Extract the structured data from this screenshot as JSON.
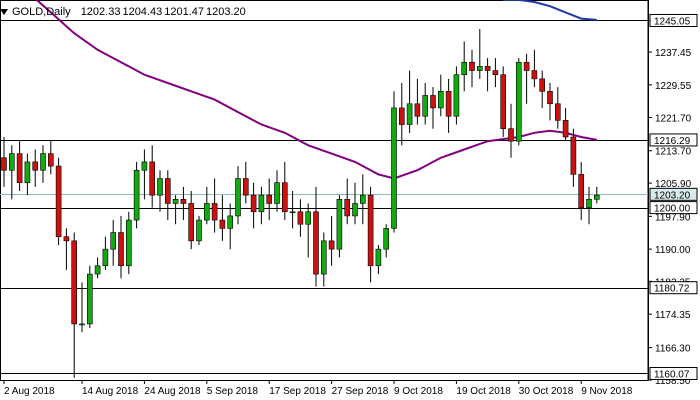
{
  "header": {
    "symbol": "GOLD,Daily",
    "open": "1202.33",
    "high": "1204.43",
    "low": "1201.47",
    "close": "1203.20"
  },
  "colors": {
    "bull": "#11aa11",
    "bear": "#cc1111",
    "ma_purple": "#800080",
    "ma_blue": "#1f3aa8",
    "line": "#000000",
    "current_price_line": "#8fb8b8",
    "axis": "#000000"
  },
  "chart_data": {
    "type": "candlestick",
    "price_axis": {
      "min": 1158.5,
      "max": 1249.5,
      "ticks": [
        "1245.05",
        "1237.45",
        "1229.55",
        "1221.70",
        "1213.70",
        "1205.90",
        "1197.90",
        "1190.00",
        "1182.25",
        "1174.35",
        "1166.30",
        "1158.50"
      ]
    },
    "price_levels": [
      {
        "label": "1245.05",
        "value": 1245.05,
        "boxed": true
      },
      {
        "label": "1216.29",
        "value": 1216.29,
        "boxed": true
      },
      {
        "label": "1203.20",
        "value": 1203.2,
        "boxed": true,
        "current": true
      },
      {
        "label": "1200.00",
        "value": 1200.0,
        "boxed": true
      },
      {
        "label": "1180.72",
        "value": 1180.72,
        "boxed": true
      },
      {
        "label": "1160.07",
        "value": 1160.07,
        "boxed": true
      }
    ],
    "x_labels": [
      "2 Aug 2018",
      "14 Aug 2018",
      "24 Aug 2018",
      "5 Sep 2018",
      "17 Sep 2018",
      "27 Sep 2018",
      "9 Oct 2018",
      "19 Oct 2018",
      "30 Oct 2018",
      "9 Nov 2018"
    ],
    "x_label_index": [
      0,
      10,
      18,
      26,
      34,
      42,
      50,
      58,
      66,
      74
    ],
    "candles": [
      [
        1212,
        1217,
        1205,
        1209
      ],
      [
        1209,
        1215,
        1202,
        1213
      ],
      [
        1213,
        1216,
        1204,
        1206
      ],
      [
        1206,
        1213,
        1203,
        1211
      ],
      [
        1211,
        1214,
        1205,
        1209
      ],
      [
        1209,
        1215,
        1206,
        1213
      ],
      [
        1213,
        1216,
        1208,
        1210
      ],
      [
        1210,
        1212,
        1191,
        1193
      ],
      [
        1193,
        1195,
        1185,
        1192
      ],
      [
        1192,
        1194,
        1159,
        1172
      ],
      [
        1172,
        1182,
        1170,
        1172
      ],
      [
        1172,
        1186,
        1171,
        1184
      ],
      [
        1184,
        1188,
        1183,
        1186
      ],
      [
        1186,
        1193,
        1185,
        1190
      ],
      [
        1190,
        1197,
        1186,
        1194
      ],
      [
        1194,
        1198,
        1183,
        1186
      ],
      [
        1186,
        1199,
        1184,
        1197
      ],
      [
        1197,
        1211,
        1195,
        1209
      ],
      [
        1209,
        1214,
        1202,
        1211
      ],
      [
        1211,
        1215,
        1200,
        1203
      ],
      [
        1203,
        1209,
        1199,
        1207
      ],
      [
        1207,
        1209,
        1197,
        1201
      ],
      [
        1201,
        1203,
        1196,
        1202
      ],
      [
        1202,
        1205,
        1197,
        1201
      ],
      [
        1201,
        1204,
        1190,
        1192
      ],
      [
        1192,
        1198,
        1191,
        1197
      ],
      [
        1197,
        1205,
        1196,
        1201
      ],
      [
        1201,
        1207,
        1194,
        1197
      ],
      [
        1197,
        1203,
        1192,
        1195
      ],
      [
        1195,
        1201,
        1190,
        1198
      ],
      [
        1198,
        1210,
        1196,
        1207
      ],
      [
        1207,
        1211,
        1201,
        1203
      ],
      [
        1203,
        1206,
        1195,
        1199
      ],
      [
        1199,
        1205,
        1196,
        1203
      ],
      [
        1203,
        1207,
        1197,
        1201
      ],
      [
        1201,
        1209,
        1199,
        1206
      ],
      [
        1206,
        1211,
        1197,
        1199
      ],
      [
        1199,
        1204,
        1195,
        1199
      ],
      [
        1199,
        1202,
        1193,
        1196
      ],
      [
        1196,
        1201,
        1188,
        1199
      ],
      [
        1199,
        1205,
        1181,
        1184
      ],
      [
        1184,
        1194,
        1181,
        1192
      ],
      [
        1192,
        1198,
        1186,
        1190
      ],
      [
        1190,
        1203,
        1188,
        1202
      ],
      [
        1202,
        1207,
        1196,
        1198
      ],
      [
        1198,
        1206,
        1196,
        1201
      ],
      [
        1201,
        1208,
        1196,
        1203
      ],
      [
        1203,
        1205,
        1182,
        1186
      ],
      [
        1186,
        1191,
        1184,
        1190
      ],
      [
        1190,
        1196,
        1188,
        1195
      ],
      [
        1195,
        1228,
        1194,
        1224
      ],
      [
        1224,
        1230,
        1215,
        1220
      ],
      [
        1220,
        1233,
        1218,
        1225
      ],
      [
        1225,
        1231,
        1220,
        1222
      ],
      [
        1222,
        1230,
        1220,
        1227
      ],
      [
        1227,
        1229,
        1219,
        1224
      ],
      [
        1224,
        1232,
        1222,
        1228
      ],
      [
        1228,
        1231,
        1218,
        1222
      ],
      [
        1222,
        1234,
        1220,
        1232
      ],
      [
        1232,
        1240,
        1228,
        1235
      ],
      [
        1235,
        1238,
        1229,
        1233
      ],
      [
        1233,
        1243,
        1231,
        1234
      ],
      [
        1234,
        1236,
        1228,
        1233
      ],
      [
        1233,
        1236,
        1229,
        1232
      ],
      [
        1232,
        1234,
        1217,
        1219
      ],
      [
        1219,
        1225,
        1212,
        1216
      ],
      [
        1216,
        1236,
        1215,
        1235
      ],
      [
        1235,
        1237,
        1225,
        1233
      ],
      [
        1233,
        1238,
        1229,
        1231
      ],
      [
        1231,
        1233,
        1224,
        1228
      ],
      [
        1228,
        1230,
        1221,
        1225
      ],
      [
        1225,
        1229,
        1219,
        1221
      ],
      [
        1221,
        1224,
        1216,
        1217
      ],
      [
        1217,
        1219,
        1205,
        1208
      ],
      [
        1208,
        1211,
        1197,
        1200
      ],
      [
        1200,
        1205,
        1196,
        1202
      ],
      [
        1202,
        1205,
        1201,
        1203
      ]
    ],
    "ma_purple": [
      [
        0,
        1258
      ],
      [
        3,
        1252
      ],
      [
        6,
        1247
      ],
      [
        9,
        1242
      ],
      [
        12,
        1238
      ],
      [
        15,
        1235
      ],
      [
        18,
        1232
      ],
      [
        21,
        1230
      ],
      [
        24,
        1228
      ],
      [
        27,
        1226
      ],
      [
        30,
        1223
      ],
      [
        33,
        1220
      ],
      [
        36,
        1218
      ],
      [
        39,
        1215
      ],
      [
        42,
        1213
      ],
      [
        45,
        1211
      ],
      [
        48,
        1208
      ],
      [
        50,
        1207
      ],
      [
        53,
        1209
      ],
      [
        56,
        1212
      ],
      [
        59,
        1214
      ],
      [
        62,
        1216
      ],
      [
        64,
        1216.5
      ],
      [
        66,
        1217
      ],
      [
        68,
        1218
      ],
      [
        70,
        1218.5
      ],
      [
        72,
        1218
      ],
      [
        74,
        1217
      ],
      [
        76,
        1216.3
      ]
    ],
    "ma_blue": [
      [
        64,
        1250
      ],
      [
        66,
        1250
      ],
      [
        68,
        1249.5
      ],
      [
        70,
        1248.5
      ],
      [
        72,
        1247
      ],
      [
        74,
        1245.5
      ],
      [
        76,
        1245.2
      ]
    ]
  }
}
